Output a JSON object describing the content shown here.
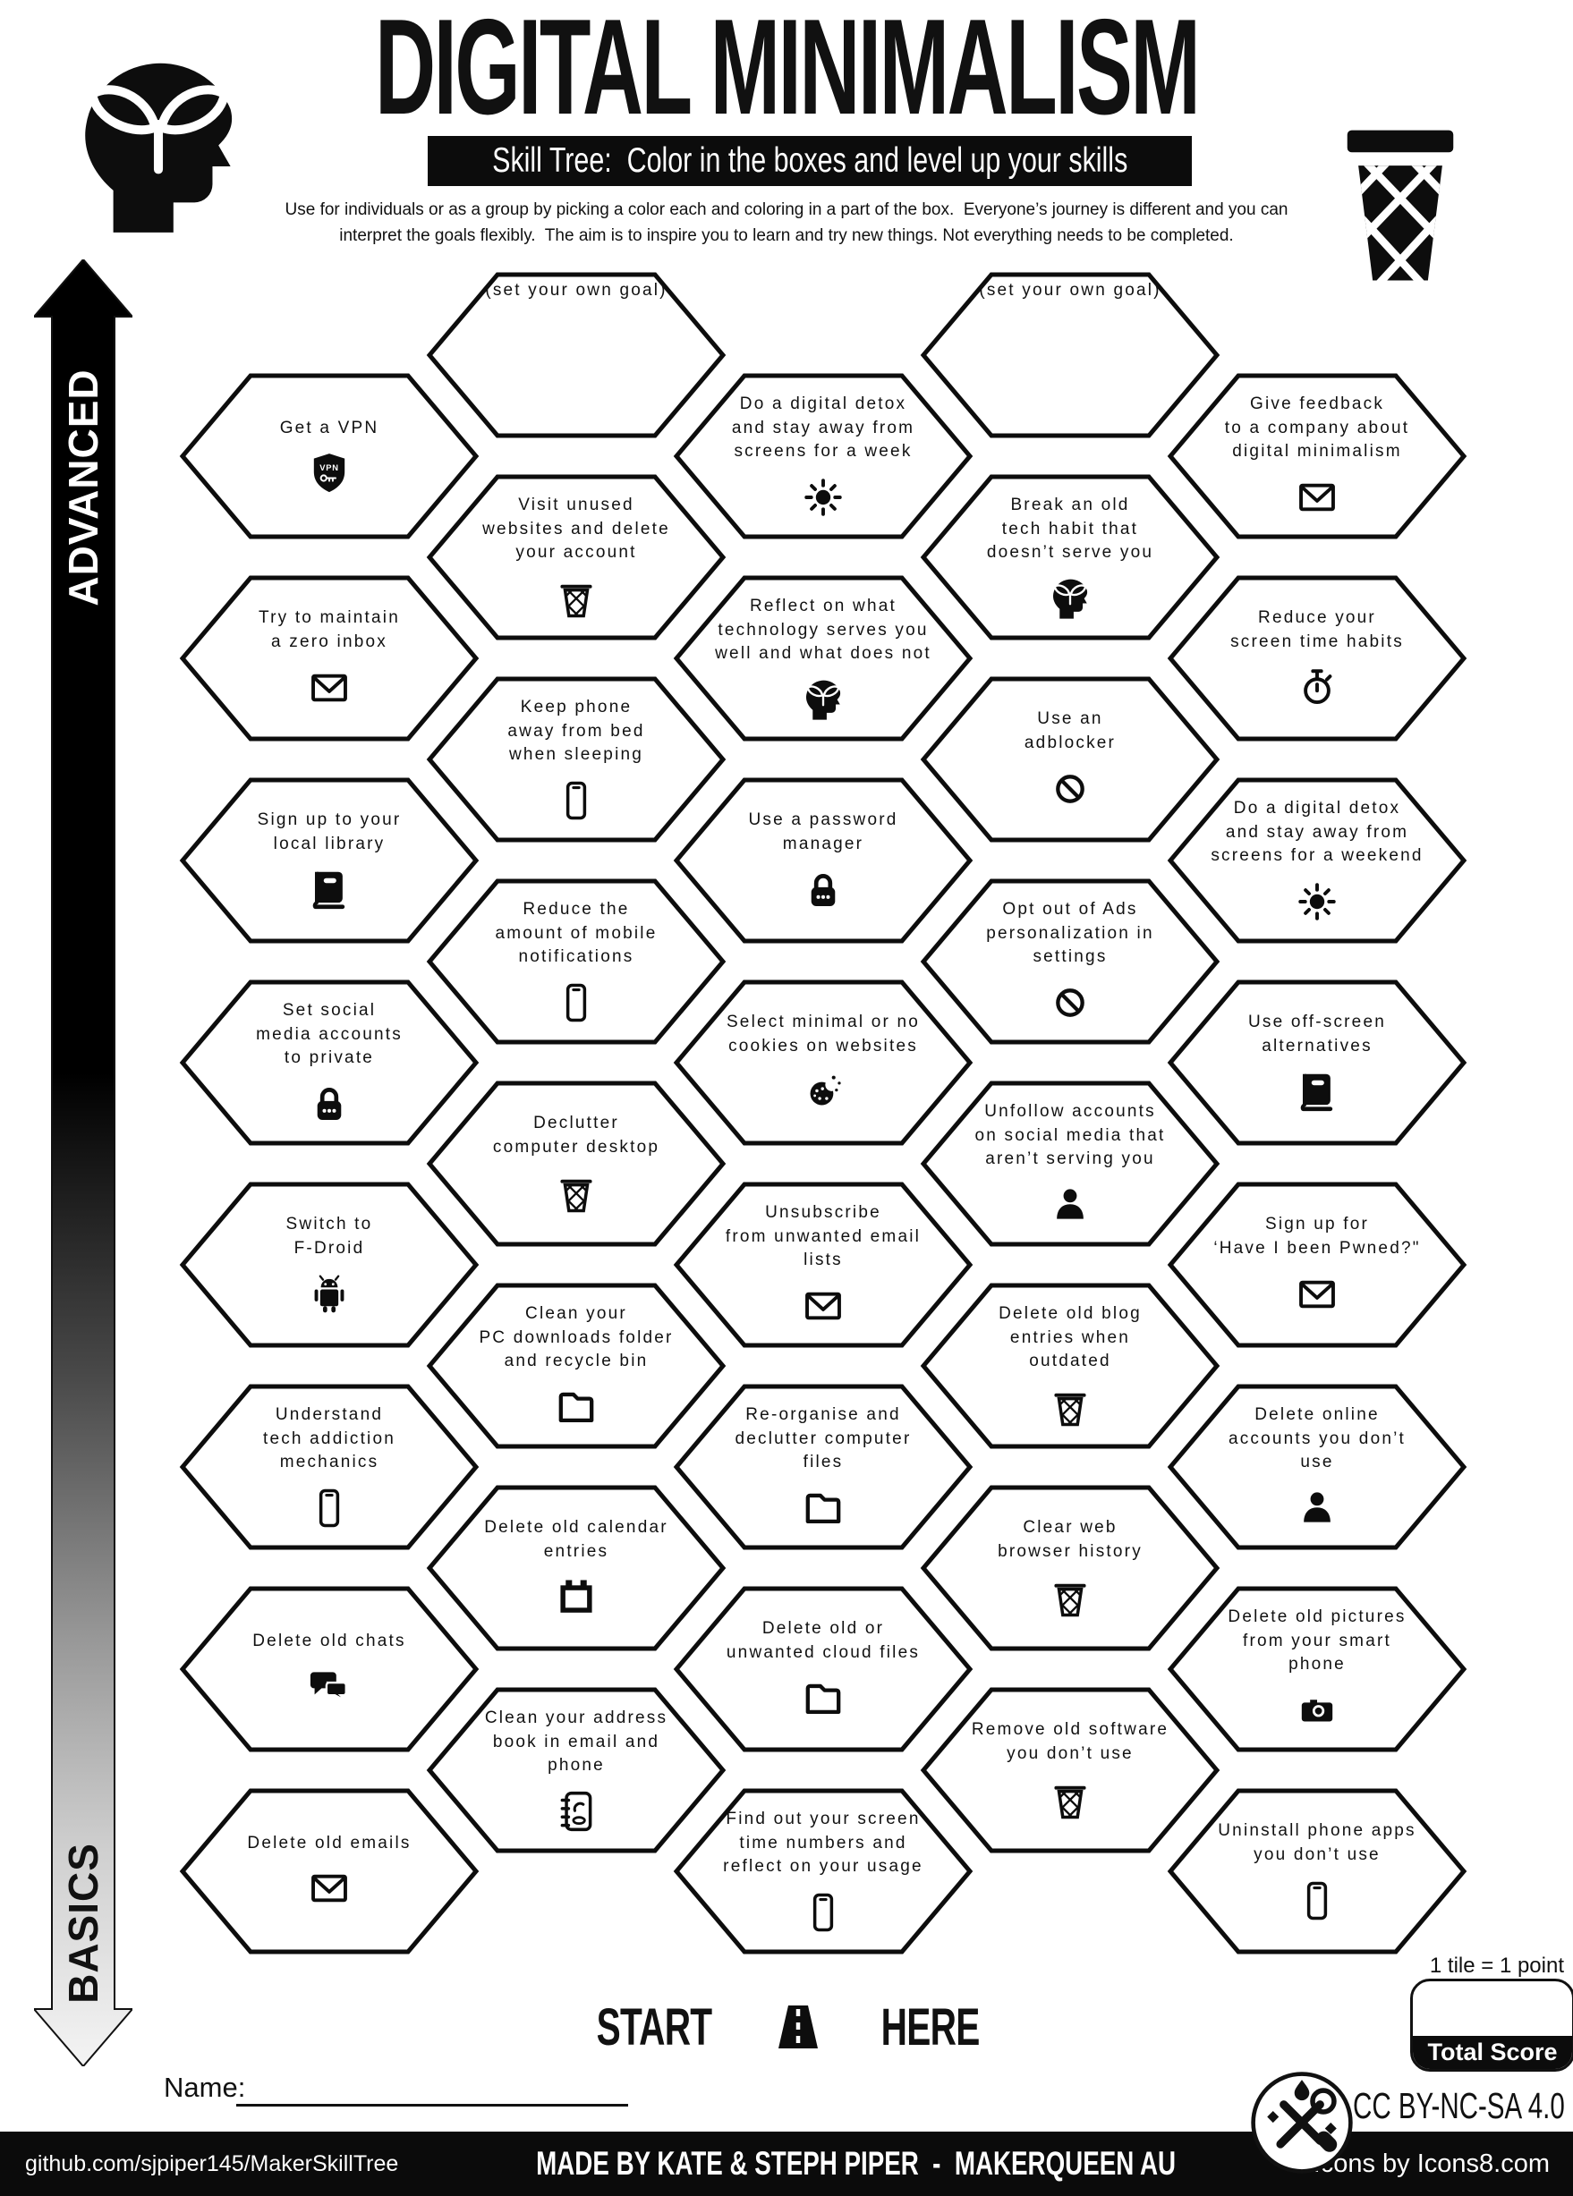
{
  "header": {
    "title": "DIGITAL MINIMALISM",
    "subtitle": "Skill Tree:  Color in the boxes and level up your skills",
    "description_line1": "Use for individuals or as a group by picking a color each and coloring in a part of the box.  Everyone’s journey is different and you can",
    "description_line2": "interpret the goals flexibly.  The aim is to inspire you to learn and try new things. Not everything needs to be completed."
  },
  "axis": {
    "top_label": "ADVANCED",
    "bottom_label": "BASICS"
  },
  "hexes": [
    {
      "c": 1,
      "r": 0,
      "label": "Get a VPN",
      "icon": "vpn-shield"
    },
    {
      "c": 1,
      "r": 1,
      "label": "Try to maintain\na zero inbox",
      "icon": "envelope"
    },
    {
      "c": 1,
      "r": 2,
      "label": "Sign up to your\nlocal library",
      "icon": "book"
    },
    {
      "c": 1,
      "r": 3,
      "label": "Set social\nmedia accounts\nto private",
      "icon": "padlock"
    },
    {
      "c": 1,
      "r": 4,
      "label": "Switch to\nF-Droid",
      "icon": "android"
    },
    {
      "c": 1,
      "r": 5,
      "label": "Understand\ntech addiction\nmechanics",
      "icon": "phone"
    },
    {
      "c": 1,
      "r": 6,
      "label": "Delete old chats",
      "icon": "chat"
    },
    {
      "c": 1,
      "r": 7,
      "label": "Delete old emails",
      "icon": "envelope"
    },
    {
      "c": 2,
      "r": 0,
      "label": "(set your own goal)",
      "icon": null
    },
    {
      "c": 2,
      "r": 1,
      "label": "Visit unused\nwebsites and delete\nyour account",
      "icon": "trash-basket"
    },
    {
      "c": 2,
      "r": 2,
      "label": "Keep phone\naway from bed\nwhen sleeping",
      "icon": "phone"
    },
    {
      "c": 2,
      "r": 3,
      "label": "Reduce the\namount of mobile\nnotifications",
      "icon": "phone"
    },
    {
      "c": 2,
      "r": 4,
      "label": "Declutter\ncomputer desktop",
      "icon": "trash-basket"
    },
    {
      "c": 2,
      "r": 5,
      "label": "Clean your\nPC downloads folder\nand recycle bin",
      "icon": "folder"
    },
    {
      "c": 2,
      "r": 6,
      "label": "Delete old calendar\nentries",
      "icon": "calendar"
    },
    {
      "c": 2,
      "r": 7,
      "label": "Clean your address\nbook in email and\nphone",
      "icon": "address-book"
    },
    {
      "c": 3,
      "r": 0,
      "label": "Do a digital detox\nand stay away from\nscreens for a week",
      "icon": "sun"
    },
    {
      "c": 3,
      "r": 1,
      "label": "Reflect on what\ntechnology serves you\nwell and what does not",
      "icon": "head-plant"
    },
    {
      "c": 3,
      "r": 2,
      "label": "Use a password\nmanager",
      "icon": "padlock"
    },
    {
      "c": 3,
      "r": 3,
      "label": "Select minimal or no\ncookies on websites",
      "icon": "cookie"
    },
    {
      "c": 3,
      "r": 4,
      "label": "Unsubscribe\nfrom unwanted email\nlists",
      "icon": "envelope"
    },
    {
      "c": 3,
      "r": 5,
      "label": "Re-organise and\ndeclutter computer\nfiles",
      "icon": "folder"
    },
    {
      "c": 3,
      "r": 6,
      "label": "Delete old or\nunwanted cloud files",
      "icon": "folder"
    },
    {
      "c": 3,
      "r": 7,
      "label": "Find out your screen\ntime numbers and\nreflect on your usage",
      "icon": "phone"
    },
    {
      "c": 4,
      "r": 0,
      "label": "(set your own goal)",
      "icon": null
    },
    {
      "c": 4,
      "r": 1,
      "label": "Break an old\ntech habit that\ndoesn’t serve you",
      "icon": "head-plant"
    },
    {
      "c": 4,
      "r": 2,
      "label": "Use an\nadblocker",
      "icon": "block"
    },
    {
      "c": 4,
      "r": 3,
      "label": "Opt out of Ads\npersonalization in\nsettings",
      "icon": "block"
    },
    {
      "c": 4,
      "r": 4,
      "label": "Unfollow accounts\non social media that\naren’t serving you",
      "icon": "person"
    },
    {
      "c": 4,
      "r": 5,
      "label": "Delete old blog\nentries when\noutdated",
      "icon": "trash-basket"
    },
    {
      "c": 4,
      "r": 6,
      "label": "Clear web\nbrowser history",
      "icon": "trash-basket"
    },
    {
      "c": 4,
      "r": 7,
      "label": "Remove old software\nyou don’t use",
      "icon": "trash-basket"
    },
    {
      "c": 5,
      "r": 0,
      "label": "Give feedback\nto a company about\ndigital minimalism",
      "icon": "envelope"
    },
    {
      "c": 5,
      "r": 1,
      "label": "Reduce your\nscreen time habits",
      "icon": "stopwatch"
    },
    {
      "c": 5,
      "r": 2,
      "label": "Do a digital detox\nand stay away from\nscreens for a weekend",
      "icon": "sun"
    },
    {
      "c": 5,
      "r": 3,
      "label": "Use off-screen\nalternatives",
      "icon": "book"
    },
    {
      "c": 5,
      "r": 4,
      "label": "Sign up for\n‘Have I been Pwned?\"",
      "icon": "envelope"
    },
    {
      "c": 5,
      "r": 5,
      "label": "Delete online\naccounts you don’t\nuse",
      "icon": "person"
    },
    {
      "c": 5,
      "r": 6,
      "label": "Delete old pictures\nfrom your smart\nphone",
      "icon": "camera"
    },
    {
      "c": 5,
      "r": 7,
      "label": "Uninstall phone apps\nyou don’t use",
      "icon": "phone"
    }
  ],
  "start": {
    "left_word": "START",
    "right_word": "HERE"
  },
  "score": {
    "tile_note": "1 tile = 1 point",
    "total_label": "Total Score"
  },
  "name_label": "Name:",
  "license_text": "CC BY-NC-SA 4.0",
  "footer": {
    "left": "github.com/sjpiper145/MakerSkillTree",
    "center": "MADE BY KATE & STEPH PIPER  -  MAKERQUEEN AU",
    "right": "Icons by Icons8.com"
  },
  "colors": {
    "ink": "#0d0d0d",
    "paper": "#ffffff"
  }
}
